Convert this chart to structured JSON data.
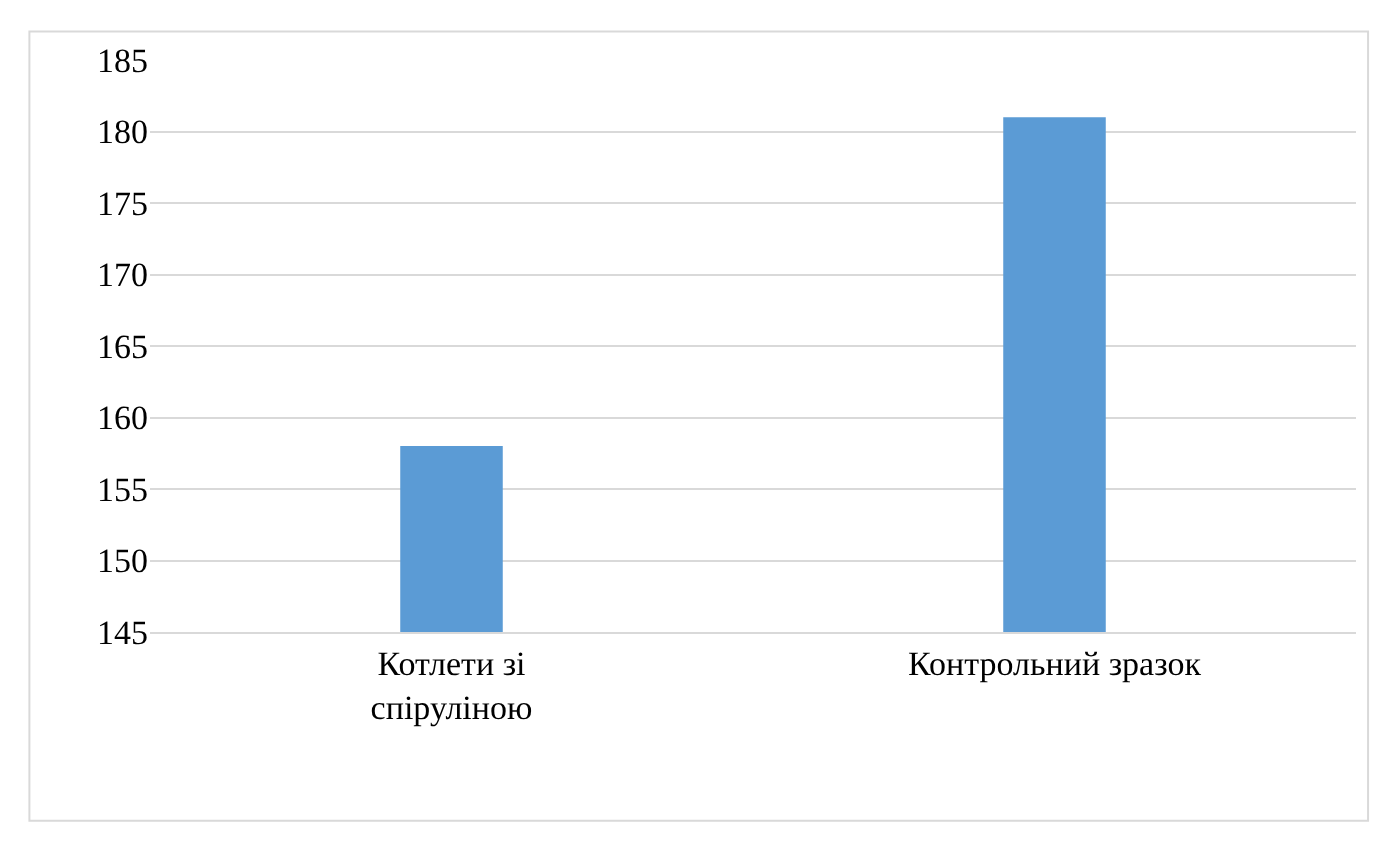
{
  "chart_data": {
    "type": "bar",
    "categories": [
      "Котлети зі спіруліною",
      "Контрольний зразок"
    ],
    "values": [
      158,
      181
    ],
    "color": "#5b9bd5",
    "ylim": [
      145,
      185
    ],
    "yticks": [
      145,
      150,
      155,
      160,
      165,
      170,
      175,
      180,
      185
    ],
    "grid": "y"
  }
}
